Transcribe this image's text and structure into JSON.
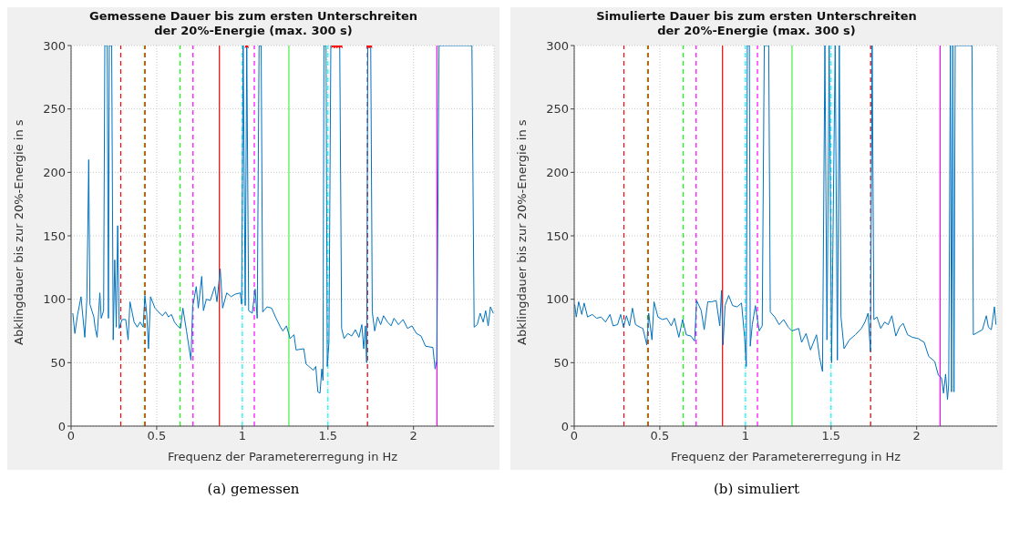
{
  "chart_data": [
    {
      "type": "line",
      "title": "Gemessene Dauer bis zum ersten Unterschreiten\nder 20%-Energie (max. 300 s)",
      "xlabel": "Frequenz der Parametererregung in Hz",
      "ylabel": "Abklingdauer bis zur 20%-Energie in s",
      "annotations": [
        "(a) gemessen"
      ],
      "xlim": [
        0,
        2.47
      ],
      "xticks": [
        0,
        0.5,
        1,
        1.5,
        2
      ],
      "ylim": [
        0,
        300
      ],
      "yticks": [
        0,
        50,
        100,
        150,
        200,
        250,
        300
      ],
      "grid": true,
      "series": [
        {
          "color": "#0072bd",
          "x": [
            0.01,
            0.022,
            0.037,
            0.058,
            0.08,
            0.092,
            0.103,
            0.11,
            0.133,
            0.141,
            0.152,
            0.168,
            0.176,
            0.19,
            0.197,
            0.211,
            0.218,
            0.223,
            0.237,
            0.246,
            0.255,
            0.264,
            0.272,
            0.281,
            0.298,
            0.319,
            0.333,
            0.344,
            0.368,
            0.386,
            0.403,
            0.421,
            0.431,
            0.442,
            0.452,
            0.464,
            0.49,
            0.517,
            0.534,
            0.552,
            0.569,
            0.586,
            0.604,
            0.621,
            0.639,
            0.653,
            0.674,
            0.7,
            0.71,
            0.731,
            0.743,
            0.763,
            0.773,
            0.79,
            0.813,
            0.839,
            0.852,
            0.871,
            0.885,
            0.909,
            0.935,
            0.958,
            0.988,
            0.996,
            1.005,
            1.017,
            1.026,
            1.037,
            1.058,
            1.075,
            1.087,
            1.098,
            1.11,
            1.119,
            1.145,
            1.171,
            1.197,
            1.223,
            1.237,
            1.258,
            1.279,
            1.302,
            1.314,
            1.359,
            1.372,
            1.415,
            1.429,
            1.441,
            1.454,
            1.464,
            1.471,
            1.477,
            1.489,
            1.496,
            1.506,
            1.517,
            1.569,
            1.58,
            1.594,
            1.616,
            1.639,
            1.66,
            1.681,
            1.698,
            1.709,
            1.719,
            1.726,
            1.733,
            1.75,
            1.759,
            1.773,
            1.79,
            1.808,
            1.825,
            1.848,
            1.869,
            1.886,
            1.912,
            1.939,
            1.965,
            1.991,
            2.017,
            2.044,
            2.07,
            2.113,
            2.126,
            2.136,
            2.149,
            2.341,
            2.354,
            2.372,
            2.389,
            2.407,
            2.421,
            2.436,
            2.449,
            2.466
          ],
          "values": [
            89,
            73,
            87,
            102,
            70,
            100,
            210,
            96,
            86,
            77,
            70,
            105,
            85,
            91,
            300,
            300,
            85,
            300,
            300,
            68,
            131,
            78,
            158,
            77,
            84,
            84,
            68,
            98,
            82,
            78,
            82,
            78,
            103,
            88,
            61,
            102,
            93,
            89,
            87,
            90,
            86,
            88,
            82,
            79,
            77,
            93,
            75,
            52,
            94,
            110,
            93,
            118,
            91,
            100,
            99,
            110,
            98,
            124,
            93,
            105,
            102,
            104,
            105,
            96,
            300,
            95,
            300,
            91,
            89,
            108,
            85,
            300,
            300,
            90,
            94,
            93,
            85,
            78,
            75,
            79,
            69,
            72,
            60,
            61,
            49,
            44,
            47,
            27,
            26,
            45,
            36,
            300,
            300,
            47,
            66,
            300,
            300,
            77,
            69,
            73,
            71,
            76,
            70,
            80,
            61,
            79,
            50,
            300,
            300,
            90,
            75,
            86,
            80,
            87,
            82,
            79,
            85,
            80,
            84,
            77,
            79,
            73,
            71,
            63,
            62,
            45,
            52,
            300,
            300,
            78,
            80,
            89,
            82,
            91,
            79,
            94,
            89
          ]
        },
        {
          "type": "scatter",
          "marker": "star",
          "color": "#ff0000",
          "x": [
            1.026,
            1.53,
            1.545,
            1.56,
            1.575,
            1.735,
            1.748
          ],
          "values": [
            300,
            300,
            300,
            300,
            300,
            300,
            300
          ]
        }
      ],
      "ref_lines": [
        {
          "axis": "x",
          "value": 0.29,
          "color": "#ff0000",
          "line_style": "dashed"
        },
        {
          "axis": "x",
          "value": 0.428,
          "color": "#00ff00",
          "line_style": "dashed"
        },
        {
          "axis": "x",
          "value": 0.432,
          "color": "#ff0000",
          "line_style": "dashed"
        },
        {
          "axis": "x",
          "value": 0.637,
          "color": "#00ff00",
          "line_style": "dashed"
        },
        {
          "axis": "x",
          "value": 0.712,
          "color": "#ff00ff",
          "line_style": "dashed"
        },
        {
          "axis": "x",
          "value": 0.866,
          "color": "#ff0000",
          "line_style": "solid"
        },
        {
          "axis": "x",
          "value": 1.0,
          "color": "#00ffff",
          "line_style": "dashed"
        },
        {
          "axis": "x",
          "value": 1.07,
          "color": "#ff00ff",
          "line_style": "dashed"
        },
        {
          "axis": "x",
          "value": 1.272,
          "color": "#44ee44",
          "line_style": "solid"
        },
        {
          "axis": "x",
          "value": 1.5,
          "color": "#00ffff",
          "line_style": "dashed"
        },
        {
          "axis": "x",
          "value": 1.731,
          "color": "#c00000",
          "line_style": "dashed"
        },
        {
          "axis": "x",
          "value": 2.137,
          "color": "#ff00ff",
          "line_style": "solid"
        }
      ]
    },
    {
      "type": "line",
      "title": "Simulierte Dauer bis zum ersten Unterschreiten\nder 20%-Energie (max. 300 s)",
      "xlabel": "Frequenz der Parametererregung in Hz",
      "ylabel": "Abklingdauer bis zur 20%-Energie in s",
      "annotations": [
        "(b) simuliert"
      ],
      "xlim": [
        0,
        2.47
      ],
      "xticks": [
        0,
        0.5,
        1,
        1.5,
        2
      ],
      "ylim": [
        0,
        300
      ],
      "yticks": [
        0,
        50,
        100,
        150,
        200,
        250,
        300
      ],
      "grid": true,
      "series": [
        {
          "color": "#0072bd",
          "x": [
            0.003,
            0.012,
            0.026,
            0.044,
            0.058,
            0.078,
            0.105,
            0.131,
            0.157,
            0.183,
            0.209,
            0.227,
            0.253,
            0.271,
            0.288,
            0.305,
            0.323,
            0.34,
            0.358,
            0.384,
            0.401,
            0.424,
            0.435,
            0.454,
            0.466,
            0.489,
            0.515,
            0.541,
            0.567,
            0.585,
            0.611,
            0.633,
            0.654,
            0.681,
            0.703,
            0.715,
            0.742,
            0.759,
            0.78,
            0.803,
            0.829,
            0.85,
            0.86,
            0.869,
            0.881,
            0.902,
            0.925,
            0.951,
            0.977,
            0.995,
            1.005,
            1.011,
            1.023,
            1.028,
            1.04,
            1.058,
            1.07,
            1.08,
            1.098,
            1.11,
            1.136,
            1.145,
            1.171,
            1.197,
            1.223,
            1.25,
            1.272,
            1.311,
            1.328,
            1.354,
            1.38,
            1.415,
            1.433,
            1.45,
            1.464,
            1.476,
            1.489,
            1.503,
            1.524,
            1.537,
            1.548,
            1.558,
            1.576,
            1.607,
            1.642,
            1.677,
            1.698,
            1.716,
            1.73,
            1.74,
            1.75,
            1.768,
            1.79,
            1.813,
            1.834,
            1.855,
            1.878,
            1.9,
            1.921,
            1.947,
            1.974,
            2.009,
            2.044,
            2.07,
            2.105,
            2.127,
            2.145,
            2.157,
            2.169,
            2.18,
            2.187,
            2.197,
            2.204,
            2.211,
            2.218,
            2.225,
            2.323,
            2.331,
            2.358,
            2.384,
            2.407,
            2.419,
            2.436,
            2.454,
            2.463
          ],
          "values": [
            96,
            86,
            98,
            88,
            97,
            86,
            88,
            85,
            86,
            82,
            88,
            79,
            80,
            88,
            78,
            87,
            79,
            93,
            80,
            78,
            77,
            64,
            89,
            68,
            98,
            86,
            84,
            85,
            79,
            85,
            70,
            84,
            72,
            71,
            67,
            99,
            91,
            76,
            98,
            98,
            99,
            79,
            107,
            64,
            95,
            103,
            95,
            94,
            97,
            70,
            47,
            300,
            300,
            63,
            80,
            95,
            84,
            75,
            79,
            300,
            300,
            90,
            86,
            80,
            84,
            78,
            75,
            77,
            66,
            73,
            60,
            72,
            54,
            43,
            300,
            68,
            300,
            50,
            300,
            52,
            300,
            86,
            61,
            68,
            72,
            77,
            82,
            89,
            59,
            300,
            84,
            86,
            77,
            82,
            80,
            87,
            71,
            78,
            81,
            72,
            70,
            69,
            66,
            55,
            51,
            40,
            38,
            26,
            41,
            21,
            33,
            300,
            27,
            300,
            27,
            300,
            300,
            72,
            74,
            76,
            87,
            78,
            76,
            94,
            80
          ]
        }
      ],
      "ref_lines": [
        {
          "axis": "x",
          "value": 0.29,
          "color": "#ff0000",
          "line_style": "dashed"
        },
        {
          "axis": "x",
          "value": 0.428,
          "color": "#00ff00",
          "line_style": "dashed"
        },
        {
          "axis": "x",
          "value": 0.432,
          "color": "#ff0000",
          "line_style": "dashed"
        },
        {
          "axis": "x",
          "value": 0.637,
          "color": "#00ff00",
          "line_style": "dashed"
        },
        {
          "axis": "x",
          "value": 0.712,
          "color": "#ff00ff",
          "line_style": "dashed"
        },
        {
          "axis": "x",
          "value": 0.866,
          "color": "#ff0000",
          "line_style": "solid"
        },
        {
          "axis": "x",
          "value": 1.0,
          "color": "#00ffff",
          "line_style": "dashed"
        },
        {
          "axis": "x",
          "value": 1.07,
          "color": "#ff00ff",
          "line_style": "dashed"
        },
        {
          "axis": "x",
          "value": 1.272,
          "color": "#44ee44",
          "line_style": "solid"
        },
        {
          "axis": "x",
          "value": 1.5,
          "color": "#00ffff",
          "line_style": "dashed"
        },
        {
          "axis": "x",
          "value": 1.731,
          "color": "#c00000",
          "line_style": "dashed"
        },
        {
          "axis": "x",
          "value": 2.137,
          "color": "#ff00ff",
          "line_style": "solid"
        }
      ]
    }
  ]
}
